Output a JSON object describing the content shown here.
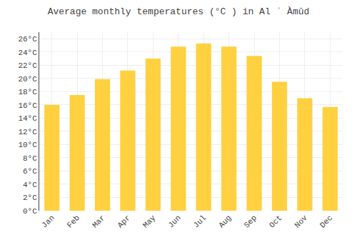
{
  "chart_data": {
    "type": "bar",
    "title": "Average monthly temperatures (°C ) in Al ʾ Àmūd",
    "categories": [
      "Jan",
      "Feb",
      "Mar",
      "Apr",
      "May",
      "Jun",
      "Jul",
      "Aug",
      "Sep",
      "Oct",
      "Nov",
      "Dec"
    ],
    "values": [
      16.0,
      17.5,
      19.9,
      21.2,
      23.0,
      24.8,
      25.3,
      24.8,
      23.4,
      19.5,
      17.0,
      15.7
    ],
    "color": "#FFD040",
    "ylim": [
      0,
      27
    ],
    "yticks": [
      {
        "value": 0,
        "label": "0°C"
      },
      {
        "value": 2,
        "label": "2°C"
      },
      {
        "value": 4,
        "label": "4°C"
      },
      {
        "value": 6,
        "label": "6°C"
      },
      {
        "value": 8,
        "label": "8°C"
      },
      {
        "value": 10,
        "label": "10°C"
      },
      {
        "value": 12,
        "label": "12°C"
      },
      {
        "value": 14,
        "label": "14°C"
      },
      {
        "value": 16,
        "label": "16°C"
      },
      {
        "value": 18,
        "label": "18°C"
      },
      {
        "value": 20,
        "label": "20°C"
      },
      {
        "value": 22,
        "label": "22°C"
      },
      {
        "value": 24,
        "label": "24°C"
      },
      {
        "value": 26,
        "label": "26°C"
      }
    ],
    "grid": true
  }
}
